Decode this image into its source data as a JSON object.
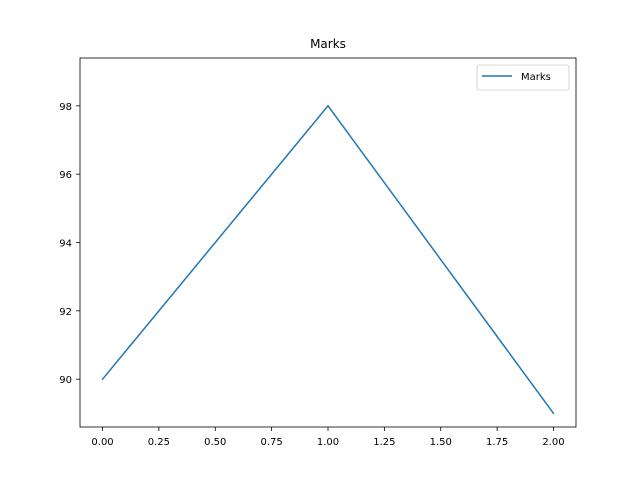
{
  "chart_data": {
    "type": "line",
    "title": "Marks",
    "xlabel": "",
    "ylabel": "",
    "xlim": [
      -0.1,
      2.1
    ],
    "ylim": [
      88.6,
      99.4
    ],
    "x_ticks": [
      0.0,
      0.25,
      0.5,
      0.75,
      1.0,
      1.25,
      1.5,
      1.75,
      2.0
    ],
    "x_tick_labels": [
      "0.00",
      "0.25",
      "0.50",
      "0.75",
      "1.00",
      "1.25",
      "1.50",
      "1.75",
      "2.00"
    ],
    "y_ticks": [
      90,
      92,
      94,
      96,
      98
    ],
    "y_tick_labels": [
      "90",
      "92",
      "94",
      "96",
      "98"
    ],
    "grid": false,
    "legend_position": "top-right",
    "series": [
      {
        "name": "Marks",
        "color": "#1f77b4",
        "x": [
          0,
          1,
          2
        ],
        "values": [
          90,
          98,
          89
        ]
      }
    ]
  }
}
